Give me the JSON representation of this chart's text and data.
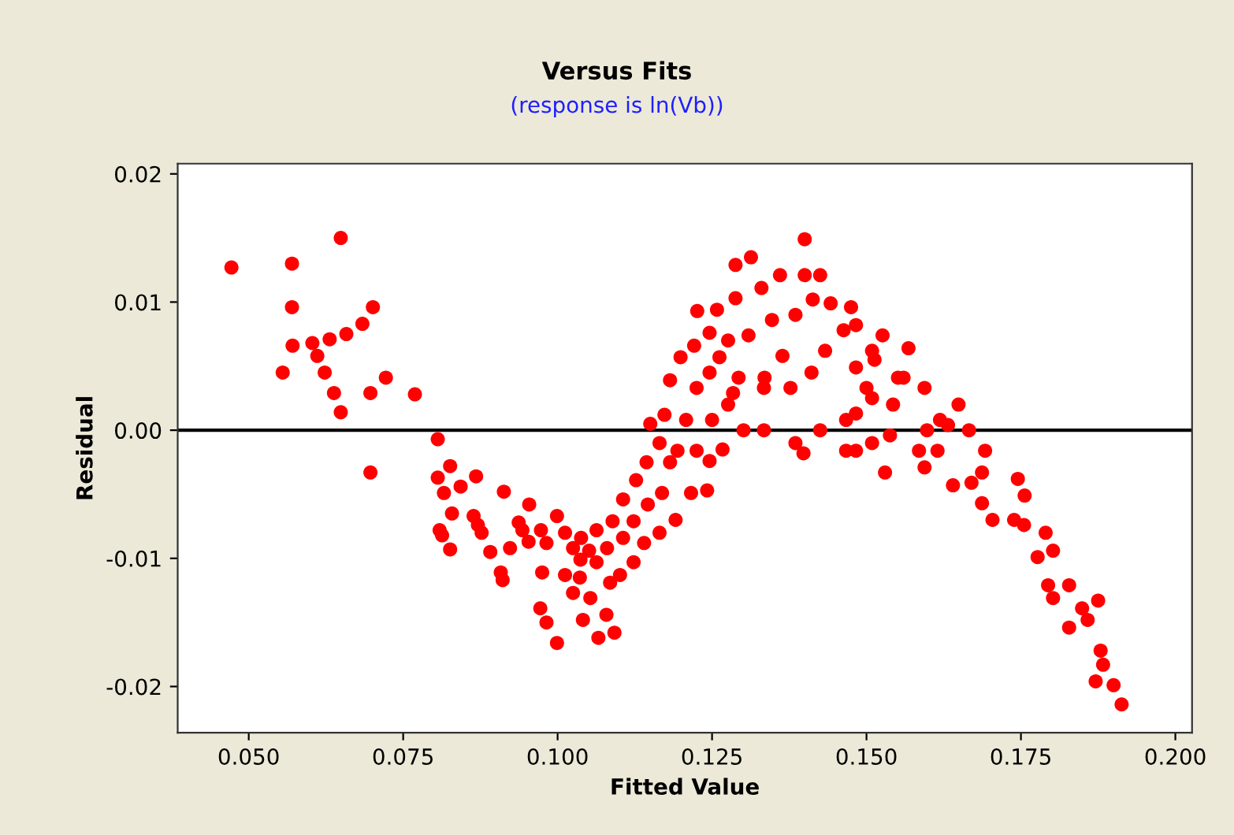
{
  "chart_data": {
    "type": "scatter",
    "title": "Versus Fits",
    "subtitle": "(response is ln(Vb))",
    "xlabel": "Fitted Value",
    "ylabel": "Residual",
    "xlim": [
      0.0385,
      0.2027
    ],
    "ylim": [
      -0.0236,
      0.0208
    ],
    "xticks": [
      {
        "value": 0.05,
        "label": "0.050"
      },
      {
        "value": 0.075,
        "label": "0.075"
      },
      {
        "value": 0.1,
        "label": "0.100"
      },
      {
        "value": 0.125,
        "label": "0.125"
      },
      {
        "value": 0.15,
        "label": "0.150"
      },
      {
        "value": 0.175,
        "label": "0.175"
      },
      {
        "value": 0.2,
        "label": "0.200"
      }
    ],
    "yticks": [
      {
        "value": 0.02,
        "label": "0.02"
      },
      {
        "value": 0.01,
        "label": "0.01"
      },
      {
        "value": 0,
        "label": "0.00"
      },
      {
        "value": -0.01,
        "label": "-0.01"
      },
      {
        "value": -0.02,
        "label": "-0.02"
      }
    ],
    "grid": false,
    "marker": "circle",
    "ref_lines": [
      {
        "axis": "y",
        "value": 0,
        "color": "#000000"
      }
    ],
    "series": [
      {
        "color": "#ff0000",
        "x": [
          0.0472,
          0.057,
          0.0649,
          0.057,
          0.0701,
          0.0684,
          0.0658,
          0.0631,
          0.0603,
          0.0571,
          0.0611,
          0.0555,
          0.0623,
          0.0638,
          0.0649,
          0.0697,
          0.0722,
          0.0769,
          0.0697,
          0.0806,
          0.0826,
          0.0806,
          0.0868,
          0.0816,
          0.0843,
          0.0913,
          0.0829,
          0.0864,
          0.0871,
          0.0877,
          0.0809,
          0.0813,
          0.0826,
          0.0891,
          0.0923,
          0.0908,
          0.0911,
          0.0937,
          0.0943,
          0.0953,
          0.0954,
          0.0973,
          0.0982,
          0.0999,
          0.0975,
          0.0972,
          0.0982,
          0.0999,
          0.1012,
          0.1025,
          0.1037,
          0.1012,
          0.1025,
          0.1036,
          0.1038,
          0.1051,
          0.1063,
          0.1053,
          0.1041,
          0.1066,
          0.1079,
          0.1092,
          0.1085,
          0.1063,
          0.108,
          0.1101,
          0.1089,
          0.1106,
          0.1123,
          0.1106,
          0.1123,
          0.114,
          0.1127,
          0.1146,
          0.1165,
          0.1144,
          0.1169,
          0.1191,
          0.115,
          0.1165,
          0.1182,
          0.1173,
          0.1194,
          0.1216,
          0.1182,
          0.1208,
          0.1225,
          0.1242,
          0.1199,
          0.1225,
          0.125,
          0.1267,
          0.1221,
          0.1246,
          0.1276,
          0.1246,
          0.1226,
          0.1246,
          0.1258,
          0.1276,
          0.1293,
          0.1262,
          0.1284,
          0.1301,
          0.1288,
          0.1309,
          0.1335,
          0.1288,
          0.1313,
          0.133,
          0.1347,
          0.1364,
          0.1377,
          0.1334,
          0.1334,
          0.136,
          0.1385,
          0.1411,
          0.14,
          0.14,
          0.1413,
          0.1425,
          0.1442,
          0.1463,
          0.1385,
          0.1398,
          0.1425,
          0.1467,
          0.1433,
          0.1467,
          0.1475,
          0.1483,
          0.1509,
          0.1483,
          0.15,
          0.1483,
          0.1483,
          0.1509,
          0.1538,
          0.1513,
          0.1543,
          0.1526,
          0.1551,
          0.1585,
          0.153,
          0.1509,
          0.1568,
          0.1594,
          0.1619,
          0.156,
          0.1598,
          0.1594,
          0.1615,
          0.164,
          0.1632,
          0.167,
          0.1649,
          0.1666,
          0.1687,
          0.1687,
          0.1704,
          0.1692,
          0.1739,
          0.1755,
          0.1777,
          0.1794,
          0.1745,
          0.1756,
          0.179,
          0.1802,
          0.1802,
          0.1828,
          0.1828,
          0.1849,
          0.1858,
          0.1879,
          0.1875,
          0.1871,
          0.1883,
          0.19,
          0.1913
        ],
        "values": [
          0.0127,
          0.013,
          0.015,
          0.0096,
          0.0096,
          0.0083,
          0.0075,
          0.0071,
          0.0068,
          0.0066,
          0.0058,
          0.0045,
          0.0045,
          0.0029,
          0.0014,
          0.0029,
          0.0041,
          0.0028,
          -0.0033,
          -0.0007,
          -0.0028,
          -0.0037,
          -0.0036,
          -0.0049,
          -0.0044,
          -0.0048,
          -0.0065,
          -0.0067,
          -0.0074,
          -0.008,
          -0.0078,
          -0.0082,
          -0.0093,
          -0.0095,
          -0.0092,
          -0.0111,
          -0.0117,
          -0.0072,
          -0.0078,
          -0.0087,
          -0.0058,
          -0.0078,
          -0.0088,
          -0.0067,
          -0.0111,
          -0.0139,
          -0.015,
          -0.0166,
          -0.008,
          -0.0092,
          -0.0101,
          -0.0113,
          -0.0127,
          -0.0115,
          -0.0084,
          -0.0094,
          -0.0103,
          -0.0131,
          -0.0148,
          -0.0162,
          -0.0144,
          -0.0158,
          -0.0119,
          -0.0078,
          -0.0092,
          -0.0113,
          -0.0071,
          -0.0084,
          -0.0103,
          -0.0054,
          -0.0071,
          -0.0088,
          -0.0039,
          -0.0058,
          -0.008,
          -0.0025,
          -0.0049,
          -0.007,
          0.0005,
          -0.001,
          -0.0025,
          0.0012,
          -0.0016,
          -0.0049,
          0.0039,
          0.0008,
          -0.0016,
          -0.0047,
          0.0057,
          0.0033,
          0.0008,
          -0.0015,
          0.0066,
          0.0045,
          0.002,
          -0.0024,
          0.0093,
          0.0076,
          0.0094,
          0.007,
          0.0041,
          0.0057,
          0.0029,
          0.0,
          0.0103,
          0.0074,
          0.0041,
          0.0129,
          0.0135,
          0.0111,
          0.0086,
          0.0058,
          0.0033,
          0.0033,
          0.0,
          0.0121,
          0.009,
          0.0045,
          0.0149,
          0.0121,
          0.0102,
          0.0121,
          0.0099,
          0.0078,
          -0.001,
          -0.0018,
          0.0,
          -0.0016,
          0.0062,
          0.0008,
          0.0096,
          0.0082,
          0.0062,
          0.0049,
          0.0033,
          0.0013,
          -0.0016,
          0.0025,
          -0.0004,
          0.0055,
          0.002,
          0.0074,
          0.0041,
          -0.0016,
          -0.0033,
          -0.001,
          0.0064,
          0.0033,
          0.0008,
          0.0041,
          0.0,
          -0.0029,
          -0.0016,
          -0.0043,
          0.0004,
          -0.0041,
          0.002,
          0.0,
          -0.0033,
          -0.0057,
          -0.007,
          -0.0016,
          -0.007,
          -0.0074,
          -0.0099,
          -0.0121,
          -0.0038,
          -0.0051,
          -0.008,
          -0.0094,
          -0.0131,
          -0.0154,
          -0.0121,
          -0.0139,
          -0.0148,
          -0.0172,
          -0.0133,
          -0.0196,
          -0.0183,
          -0.0199,
          -0.0214
        ]
      }
    ]
  }
}
